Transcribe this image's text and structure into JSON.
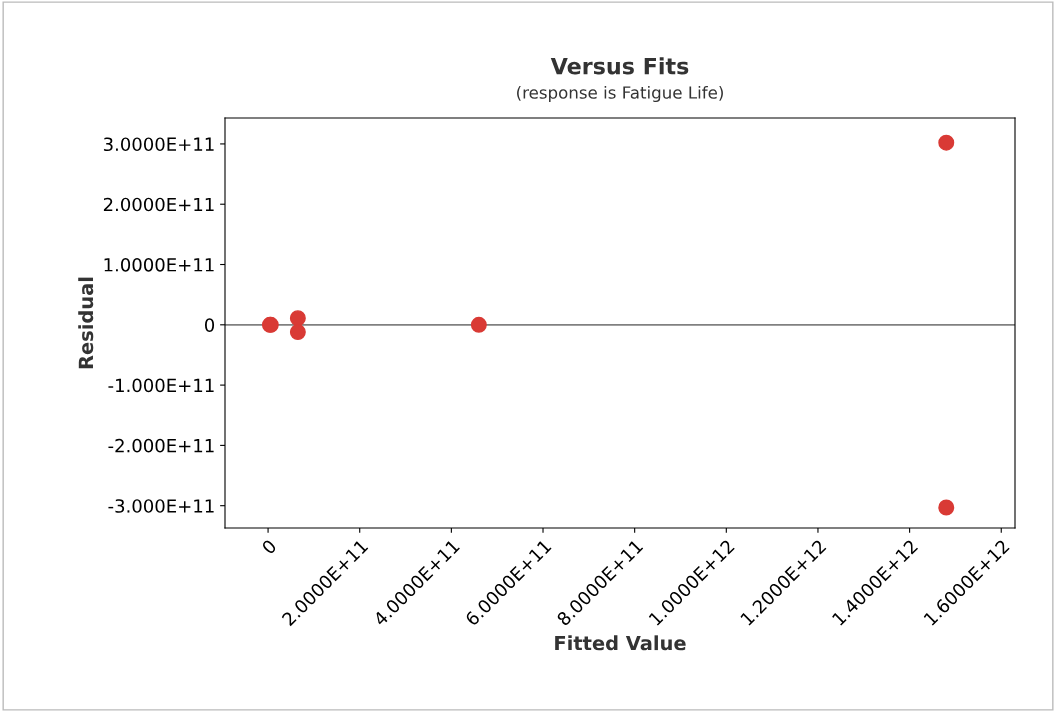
{
  "chart_data": {
    "type": "scatter",
    "title": "Versus Fits",
    "subtitle": "(response is Fatigue Life)",
    "xlabel": "Fitted Value",
    "ylabel": "Residual",
    "x": [
      4000000000.0,
      6000000000.0,
      65000000000.0,
      65000000000.0,
      460000000000.0,
      1480000000000.0,
      1480000000000.0
    ],
    "series": [
      {
        "color": "#d93a35",
        "values": [
          0,
          0,
          11000000000.0,
          -12000000000.0,
          0,
          302000000000.0,
          -303000000000.0
        ]
      }
    ],
    "marker": "circle",
    "xlim": [
      -94000000000.0,
      1630000000000.0
    ],
    "ylim": [
      -337000000000.0,
      343000000000.0
    ],
    "xticks": [
      0,
      {
        "value": 200000000000.0,
        "label": "2.0000E+11"
      },
      {
        "value": 400000000000.0,
        "label": "4.0000E+11"
      },
      {
        "value": 600000000000.0,
        "label": "6.0000E+11"
      },
      {
        "value": 800000000000.0,
        "label": "8.0000E+11"
      },
      {
        "value": 1000000000000.0,
        "label": "1.0000E+12"
      },
      {
        "value": 1200000000000.0,
        "label": "1.2000E+12"
      },
      {
        "value": 1400000000000.0,
        "label": "1.4000E+12"
      },
      {
        "value": 1600000000000.0,
        "label": "1.6000E+12"
      }
    ],
    "yticks": [
      {
        "value": -300000000000.0,
        "label": "-3.000E+11"
      },
      {
        "value": -200000000000.0,
        "label": "-2.000E+11"
      },
      {
        "value": -100000000000.0,
        "label": "-1.000E+11"
      },
      0,
      {
        "value": 100000000000.0,
        "label": "1.0000E+11"
      },
      {
        "value": 200000000000.0,
        "label": "2.0000E+11"
      },
      {
        "value": 300000000000.0,
        "label": "3.0000E+11"
      }
    ],
    "ref_lines": [
      {
        "axis": "y",
        "value": 0,
        "color": "#808080"
      }
    ],
    "grid": false,
    "legend": false
  }
}
